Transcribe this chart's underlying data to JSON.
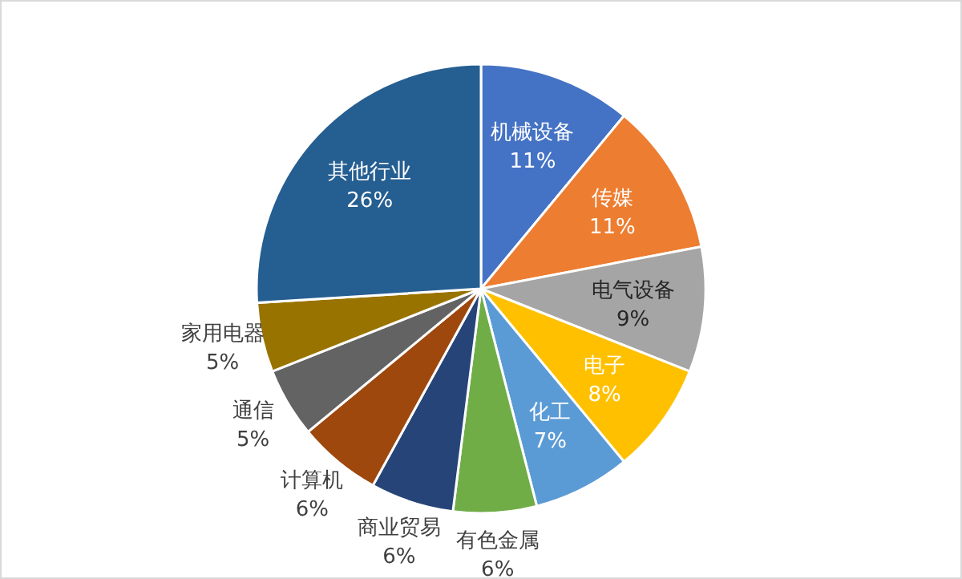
{
  "chart_data": {
    "type": "pie",
    "categories": [
      "机械设备",
      "传媒",
      "电气设备",
      "电子",
      "化工",
      "有色金属",
      "商业贸易",
      "计算机",
      "通信",
      "家用电器",
      "其他行业"
    ],
    "values": [
      11,
      11,
      9,
      8,
      7,
      6,
      6,
      6,
      5,
      5,
      26
    ],
    "colors": [
      "#4472c4",
      "#ed7d31",
      "#a5a5a5",
      "#ffc000",
      "#5b9bd5",
      "#70ad47",
      "#264478",
      "#9e480e",
      "#636363",
      "#997300",
      "#255e91"
    ],
    "value_labels": [
      "11%",
      "11%",
      "9%",
      "8%",
      "7%",
      "6%",
      "6%",
      "6%",
      "5%",
      "5%",
      "26%"
    ],
    "legend": false
  }
}
